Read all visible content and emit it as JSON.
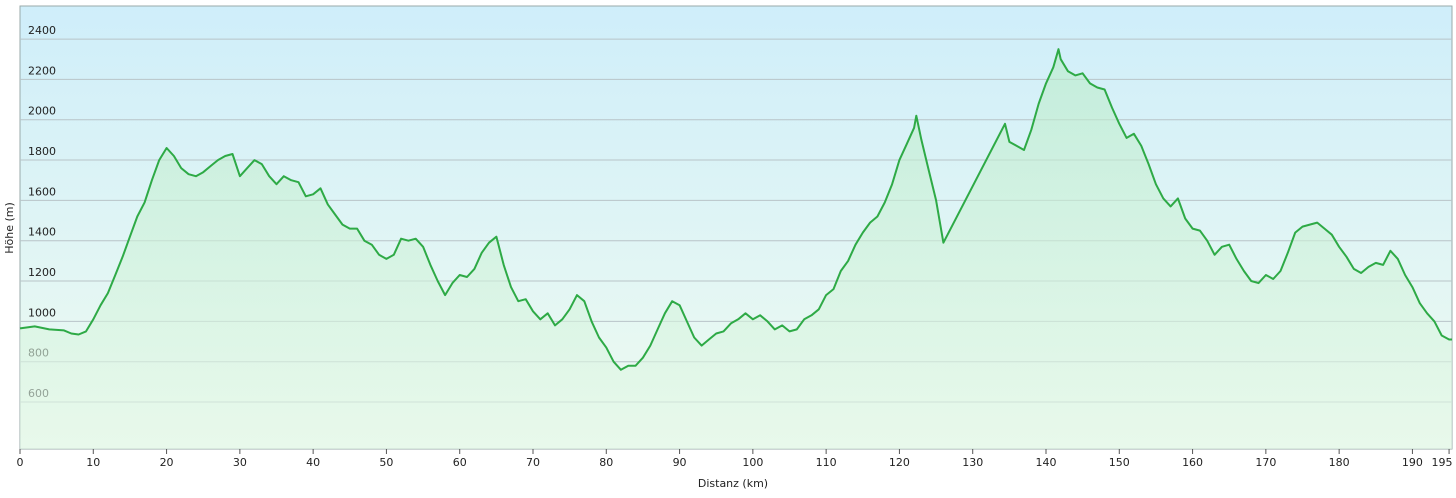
{
  "chart_data": {
    "type": "line",
    "x_label": "Distanz  (km)",
    "y_label": "Höhe (m)",
    "x": [
      0,
      2,
      4,
      6,
      7,
      8,
      9,
      10,
      11,
      12,
      13,
      14,
      15,
      16,
      17,
      18,
      19,
      20,
      21,
      22,
      23,
      24,
      25,
      26,
      27,
      28,
      29,
      30,
      31,
      32,
      33,
      34,
      35,
      36,
      37,
      38,
      39,
      40,
      41,
      42,
      43,
      44,
      45,
      46,
      47,
      48,
      49,
      50,
      51,
      52,
      53,
      54,
      55,
      56,
      57,
      58,
      59,
      60,
      61,
      62,
      63,
      64,
      65,
      66,
      67,
      68,
      69,
      70,
      71,
      72,
      73,
      74,
      75,
      76,
      77,
      78,
      79,
      80,
      81,
      82,
      83,
      84,
      85,
      86,
      87,
      88,
      89,
      90,
      91,
      92,
      93,
      94,
      95,
      96,
      97,
      98,
      99,
      100,
      101,
      102,
      103,
      104,
      105,
      106,
      107,
      108,
      109,
      110,
      111,
      112,
      113,
      114,
      115,
      116,
      117,
      118,
      119,
      120,
      121,
      122,
      122.3,
      123,
      124,
      125,
      126,
      134.4,
      135,
      136,
      137,
      138,
      139,
      140,
      141,
      141.7,
      142,
      143,
      144,
      145,
      146,
      147,
      148,
      149,
      150,
      151,
      152,
      153,
      154,
      155,
      156,
      157,
      158,
      159,
      160,
      161,
      162,
      163,
      164,
      165,
      166,
      167,
      168,
      169,
      170,
      171,
      172,
      173,
      174,
      175,
      176,
      177,
      178,
      179,
      180,
      181,
      182,
      183,
      184,
      185,
      186,
      187,
      188,
      189,
      190,
      191,
      192,
      193,
      194,
      195,
      195.4
    ],
    "series": [
      {
        "name": "Höhe",
        "color": "#2eaa46",
        "values": [
          965,
          975,
          960,
          955,
          940,
          935,
          950,
          1010,
          1080,
          1140,
          1230,
          1320,
          1420,
          1520,
          1590,
          1700,
          1800,
          1860,
          1820,
          1760,
          1730,
          1720,
          1740,
          1770,
          1800,
          1820,
          1830,
          1720,
          1760,
          1800,
          1780,
          1720,
          1680,
          1720,
          1700,
          1690,
          1620,
          1630,
          1660,
          1580,
          1530,
          1480,
          1460,
          1460,
          1400,
          1380,
          1330,
          1310,
          1330,
          1410,
          1400,
          1410,
          1370,
          1280,
          1200,
          1130,
          1190,
          1230,
          1220,
          1260,
          1340,
          1390,
          1420,
          1280,
          1170,
          1100,
          1110,
          1050,
          1010,
          1040,
          980,
          1010,
          1060,
          1130,
          1100,
          1000,
          920,
          870,
          800,
          760,
          780,
          780,
          820,
          880,
          960,
          1040,
          1100,
          1080,
          1000,
          920,
          880,
          910,
          940,
          950,
          990,
          1010,
          1040,
          1010,
          1030,
          1000,
          960,
          980,
          950,
          960,
          1010,
          1030,
          1060,
          1130,
          1160,
          1250,
          1300,
          1380,
          1440,
          1490,
          1520,
          1590,
          1680,
          1800,
          1880,
          1960,
          2020,
          1900,
          1750,
          1600,
          1390,
          1980,
          1890,
          1870,
          1850,
          1950,
          2080,
          2180,
          2260,
          2350,
          2300,
          2240,
          2220,
          2230,
          2180,
          2160,
          2150,
          2060,
          1980,
          1910,
          1930,
          1870,
          1780,
          1680,
          1610,
          1570,
          1610,
          1510,
          1460,
          1450,
          1400,
          1330,
          1370,
          1380,
          1310,
          1250,
          1200,
          1190,
          1230,
          1210,
          1250,
          1340,
          1440,
          1470,
          1480,
          1490,
          1460,
          1430,
          1370,
          1320,
          1260,
          1240,
          1270,
          1290,
          1280,
          1350,
          1310,
          1230,
          1170,
          1090,
          1040,
          1000,
          930,
          910,
          910
        ]
      }
    ],
    "xlim": [
      0,
      195.4
    ],
    "ylim": [
      367,
      2564
    ],
    "xticks": [
      0,
      10,
      20,
      30,
      40,
      50,
      60,
      70,
      80,
      90,
      100,
      110,
      120,
      130,
      140,
      150,
      160,
      170,
      180,
      190,
      195
    ],
    "yticks": [
      600,
      800,
      1000,
      1200,
      1400,
      1600,
      1800,
      2000,
      2200,
      2400
    ],
    "grid": true
  }
}
